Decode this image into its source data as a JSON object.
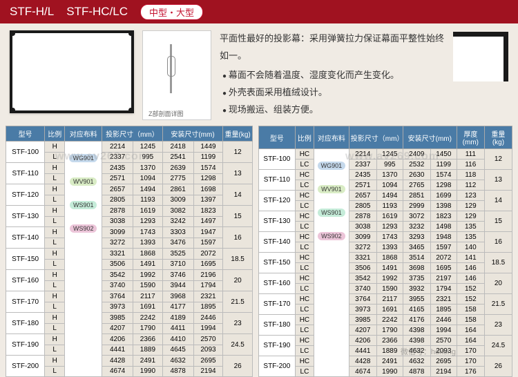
{
  "header": {
    "t1": "STF-H/L",
    "t2": "STF-HC/LC",
    "badge": "中型・大型"
  },
  "desc": {
    "main": "平面性最好的投影幕：采用弹簧拉力保证幕面平整性始终如一。",
    "b1": "幕面不会随着温度、湿度变化而产生变化。",
    "b2": "外壳表面采用植绒设计。",
    "b3": "现场搬运、组装方便。"
  },
  "diag_label": "Z部剖面详图",
  "watermark": "www.av269.com",
  "table1": {
    "headers": [
      "型号",
      "比例",
      "对应布料",
      "投影尺寸（mm）",
      "安装尺寸(mm)",
      "重量(kg)"
    ],
    "rows": [
      {
        "m": "STF-100",
        "r": [
          "H",
          "L"
        ],
        "f": "",
        "p": [
          [
            "2214",
            "1245"
          ],
          [
            "2337",
            "995"
          ]
        ],
        "a": [
          [
            "2418",
            "1449"
          ],
          [
            "2541",
            "1199"
          ]
        ],
        "w": "12"
      },
      {
        "m": "STF-110",
        "r": [
          "H",
          "L"
        ],
        "f": "WG901",
        "fc": "f-wg",
        "p": [
          [
            "2435",
            "1370"
          ],
          [
            "2571",
            "1094"
          ]
        ],
        "a": [
          [
            "2639",
            "1574"
          ],
          [
            "2775",
            "1298"
          ]
        ],
        "w": "13"
      },
      {
        "m": "STF-120",
        "r": [
          "H",
          "L"
        ],
        "f": "WV901",
        "fc": "f-wv",
        "p": [
          [
            "2657",
            "1494"
          ],
          [
            "2805",
            "1193"
          ]
        ],
        "a": [
          [
            "2861",
            "1698"
          ],
          [
            "3009",
            "1397"
          ]
        ],
        "w": "14"
      },
      {
        "m": "STF-130",
        "r": [
          "H",
          "L"
        ],
        "f": "",
        "p": [
          [
            "2878",
            "1619"
          ],
          [
            "3038",
            "1293"
          ]
        ],
        "a": [
          [
            "3082",
            "1823"
          ],
          [
            "3242",
            "1497"
          ]
        ],
        "w": "15"
      },
      {
        "m": "STF-140",
        "r": [
          "H",
          "L"
        ],
        "f": "WS901",
        "fc": "f-ws1",
        "p": [
          [
            "3099",
            "1743"
          ],
          [
            "3272",
            "1393"
          ]
        ],
        "a": [
          [
            "3303",
            "1947"
          ],
          [
            "3476",
            "1597"
          ]
        ],
        "w": "16"
      },
      {
        "m": "STF-150",
        "r": [
          "H",
          "L"
        ],
        "f": "",
        "p": [
          [
            "3321",
            "1868"
          ],
          [
            "3506",
            "1491"
          ]
        ],
        "a": [
          [
            "3525",
            "2072"
          ],
          [
            "3710",
            "1695"
          ]
        ],
        "w": "18.5"
      },
      {
        "m": "STF-160",
        "r": [
          "H",
          "L"
        ],
        "f": "",
        "p": [
          [
            "3542",
            "1992"
          ],
          [
            "3740",
            "1590"
          ]
        ],
        "a": [
          [
            "3746",
            "2196"
          ],
          [
            "3944",
            "1794"
          ]
        ],
        "w": "20"
      },
      {
        "m": "STF-170",
        "r": [
          "H",
          "L"
        ],
        "f": "WS902",
        "fc": "f-ws2",
        "p": [
          [
            "3764",
            "2117"
          ],
          [
            "3973",
            "1691"
          ]
        ],
        "a": [
          [
            "3968",
            "2321"
          ],
          [
            "4177",
            "1895"
          ]
        ],
        "w": "21.5"
      },
      {
        "m": "STF-180",
        "r": [
          "H",
          "L"
        ],
        "f": "",
        "p": [
          [
            "3985",
            "2242"
          ],
          [
            "4207",
            "1790"
          ]
        ],
        "a": [
          [
            "4189",
            "2446"
          ],
          [
            "4411",
            "1994"
          ]
        ],
        "w": "23"
      },
      {
        "m": "STF-190",
        "r": [
          "H",
          "L"
        ],
        "f": "",
        "p": [
          [
            "4206",
            "2366"
          ],
          [
            "4441",
            "1889"
          ]
        ],
        "a": [
          [
            "4410",
            "2570"
          ],
          [
            "4645",
            "2093"
          ]
        ],
        "w": "24.5"
      },
      {
        "m": "STF-200",
        "r": [
          "H",
          "L"
        ],
        "f": "",
        "p": [
          [
            "4428",
            "2491"
          ],
          [
            "4674",
            "1990"
          ]
        ],
        "a": [
          [
            "4632",
            "2695"
          ],
          [
            "4878",
            "2194"
          ]
        ],
        "w": "26"
      }
    ]
  },
  "table2": {
    "headers": [
      "型号",
      "比例",
      "对应布料",
      "投影尺寸（mm）",
      "安装尺寸(mm)",
      "厚度(mm)",
      "重量(kg)"
    ],
    "rows": [
      {
        "m": "STF-100",
        "r": [
          "HC",
          "LC"
        ],
        "f": "",
        "p": [
          [
            "2214",
            "1245"
          ],
          [
            "2337",
            "995"
          ]
        ],
        "a": [
          [
            "2409",
            "1450"
          ],
          [
            "2532",
            "1199"
          ]
        ],
        "th": [
          "111",
          "116"
        ],
        "w": "12"
      },
      {
        "m": "STF-110",
        "r": [
          "HC",
          "LC"
        ],
        "f": "WG901",
        "fc": "f-wg",
        "p": [
          [
            "2435",
            "1370"
          ],
          [
            "2571",
            "1094"
          ]
        ],
        "a": [
          [
            "2630",
            "1574"
          ],
          [
            "2765",
            "1298"
          ]
        ],
        "th": [
          "118",
          "112"
        ],
        "w": "13"
      },
      {
        "m": "STF-120",
        "r": [
          "HC",
          "LC"
        ],
        "f": "WV901",
        "fc": "f-wv",
        "p": [
          [
            "2657",
            "1494"
          ],
          [
            "2805",
            "1193"
          ]
        ],
        "a": [
          [
            "2851",
            "1699"
          ],
          [
            "2999",
            "1398"
          ]
        ],
        "th": [
          "123",
          "129"
        ],
        "w": "14"
      },
      {
        "m": "STF-130",
        "r": [
          "HC",
          "LC"
        ],
        "f": "",
        "p": [
          [
            "2878",
            "1619"
          ],
          [
            "3038",
            "1293"
          ]
        ],
        "a": [
          [
            "3072",
            "1823"
          ],
          [
            "3232",
            "1498"
          ]
        ],
        "th": [
          "129",
          "135"
        ],
        "w": "15"
      },
      {
        "m": "STF-140",
        "r": [
          "HC",
          "LC"
        ],
        "f": "WS901",
        "fc": "f-ws1",
        "p": [
          [
            "3099",
            "1743"
          ],
          [
            "3272",
            "1393"
          ]
        ],
        "a": [
          [
            "3293",
            "1948"
          ],
          [
            "3465",
            "1597"
          ]
        ],
        "th": [
          "135",
          "140"
        ],
        "w": "16"
      },
      {
        "m": "STF-150",
        "r": [
          "HC",
          "LC"
        ],
        "f": "",
        "p": [
          [
            "3321",
            "1868"
          ],
          [
            "3506",
            "1491"
          ]
        ],
        "a": [
          [
            "3514",
            "2072"
          ],
          [
            "3698",
            "1695"
          ]
        ],
        "th": [
          "141",
          "146"
        ],
        "w": "18.5"
      },
      {
        "m": "STF-160",
        "r": [
          "HC",
          "LC"
        ],
        "f": "",
        "p": [
          [
            "3542",
            "1992"
          ],
          [
            "3740",
            "1590"
          ]
        ],
        "a": [
          [
            "3735",
            "2197"
          ],
          [
            "3932",
            "1794"
          ]
        ],
        "th": [
          "146",
          "152"
        ],
        "w": "20"
      },
      {
        "m": "STF-170",
        "r": [
          "HC",
          "LC"
        ],
        "f": "WS902",
        "fc": "f-ws2",
        "p": [
          [
            "3764",
            "2117"
          ],
          [
            "3973",
            "1691"
          ]
        ],
        "a": [
          [
            "3955",
            "2321"
          ],
          [
            "4165",
            "1895"
          ]
        ],
        "th": [
          "152",
          "158"
        ],
        "w": "21.5"
      },
      {
        "m": "STF-180",
        "r": [
          "HC",
          "LC"
        ],
        "f": "",
        "p": [
          [
            "3985",
            "2242"
          ],
          [
            "4207",
            "1790"
          ]
        ],
        "a": [
          [
            "4176",
            "2446"
          ],
          [
            "4398",
            "1994"
          ]
        ],
        "th": [
          "158",
          "164"
        ],
        "w": "23"
      },
      {
        "m": "STF-190",
        "r": [
          "HC",
          "LC"
        ],
        "f": "",
        "p": [
          [
            "4206",
            "2366"
          ],
          [
            "4441",
            "1889"
          ]
        ],
        "a": [
          [
            "4398",
            "2570"
          ],
          [
            "4632",
            "2093"
          ]
        ],
        "th": [
          "164",
          "170"
        ],
        "w": "24.5"
      },
      {
        "m": "STF-200",
        "r": [
          "HC",
          "LC"
        ],
        "f": "",
        "p": [
          [
            "4428",
            "2491"
          ],
          [
            "4674",
            "1990"
          ]
        ],
        "a": [
          [
            "4632",
            "2695"
          ],
          [
            "4878",
            "2194"
          ]
        ],
        "th": [
          "170",
          "176"
        ],
        "w": "26"
      }
    ]
  },
  "footer": "微信号：hdkong"
}
